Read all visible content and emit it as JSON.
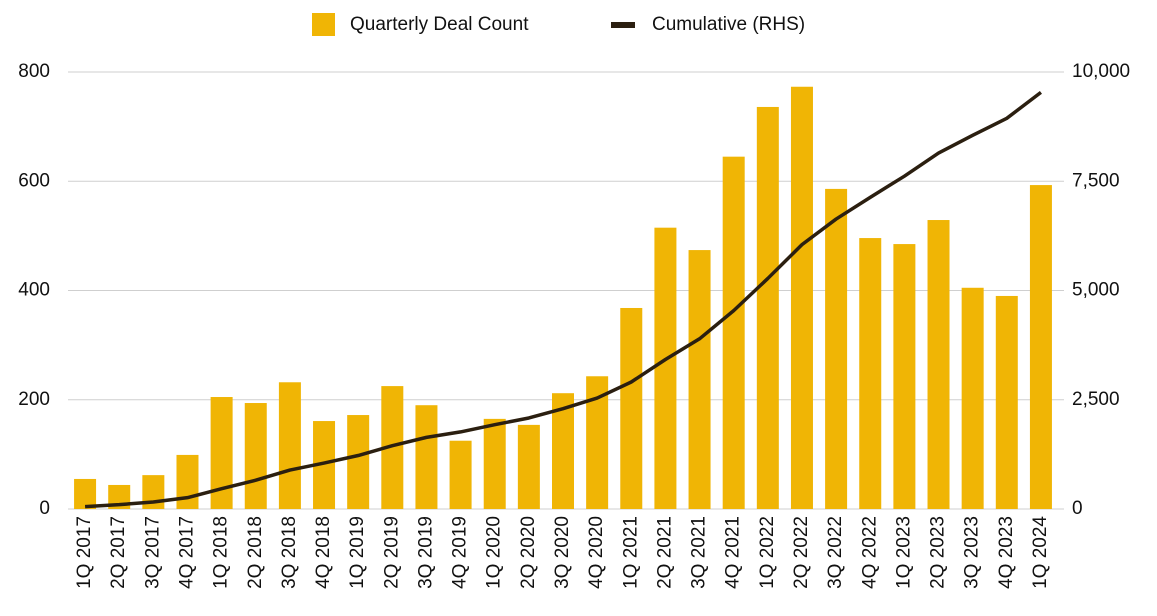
{
  "chart_data": {
    "type": "bar_line",
    "categories": [
      "1Q 2017",
      "2Q 2017",
      "3Q 2017",
      "4Q 2017",
      "1Q 2018",
      "2Q 2018",
      "3Q 2018",
      "4Q 2018",
      "1Q 2019",
      "2Q 2019",
      "3Q 2019",
      "4Q 2019",
      "1Q 2020",
      "2Q 2020",
      "3Q 2020",
      "4Q 2020",
      "1Q 2021",
      "2Q 2021",
      "3Q 2021",
      "4Q 2021",
      "1Q 2022",
      "2Q 2022",
      "3Q 2022",
      "4Q 2022",
      "1Q 2023",
      "2Q 2023",
      "3Q 2023",
      "4Q 2023",
      "1Q 2024"
    ],
    "series": [
      {
        "name": "Quarterly Deal Count",
        "type": "bar",
        "color": "#f0b505",
        "values": [
          55,
          44,
          62,
          99,
          205,
          194,
          232,
          161,
          172,
          225,
          190,
          125,
          165,
          154,
          212,
          243,
          368,
          515,
          474,
          645,
          736,
          773,
          586,
          496,
          485,
          529,
          405,
          390,
          593
        ]
      },
      {
        "name": "Cumulative (RHS)",
        "type": "line",
        "axis": "y2",
        "color": "#2b1f10",
        "values": [
          55,
          99,
          161,
          260,
          465,
          659,
          891,
          1052,
          1224,
          1449,
          1639,
          1764,
          1929,
          2083,
          2295,
          2538,
          2906,
          3421,
          3895,
          4540,
          5276,
          6049,
          6635,
          7131,
          7616,
          8145,
          8550,
          8940,
          9533
        ]
      }
    ],
    "ylim": [
      0,
      800
    ],
    "yticks": [
      0,
      200,
      400,
      600,
      800
    ],
    "y2lim": [
      0,
      10000
    ],
    "y2ticks": [
      0,
      {
        "value": 2500,
        "label": "2,500"
      },
      {
        "value": 5000,
        "label": "5,000"
      },
      {
        "value": 7500,
        "label": "7,500"
      },
      {
        "value": 10000,
        "label": "10,000"
      }
    ],
    "grid": true,
    "legend": "top"
  }
}
